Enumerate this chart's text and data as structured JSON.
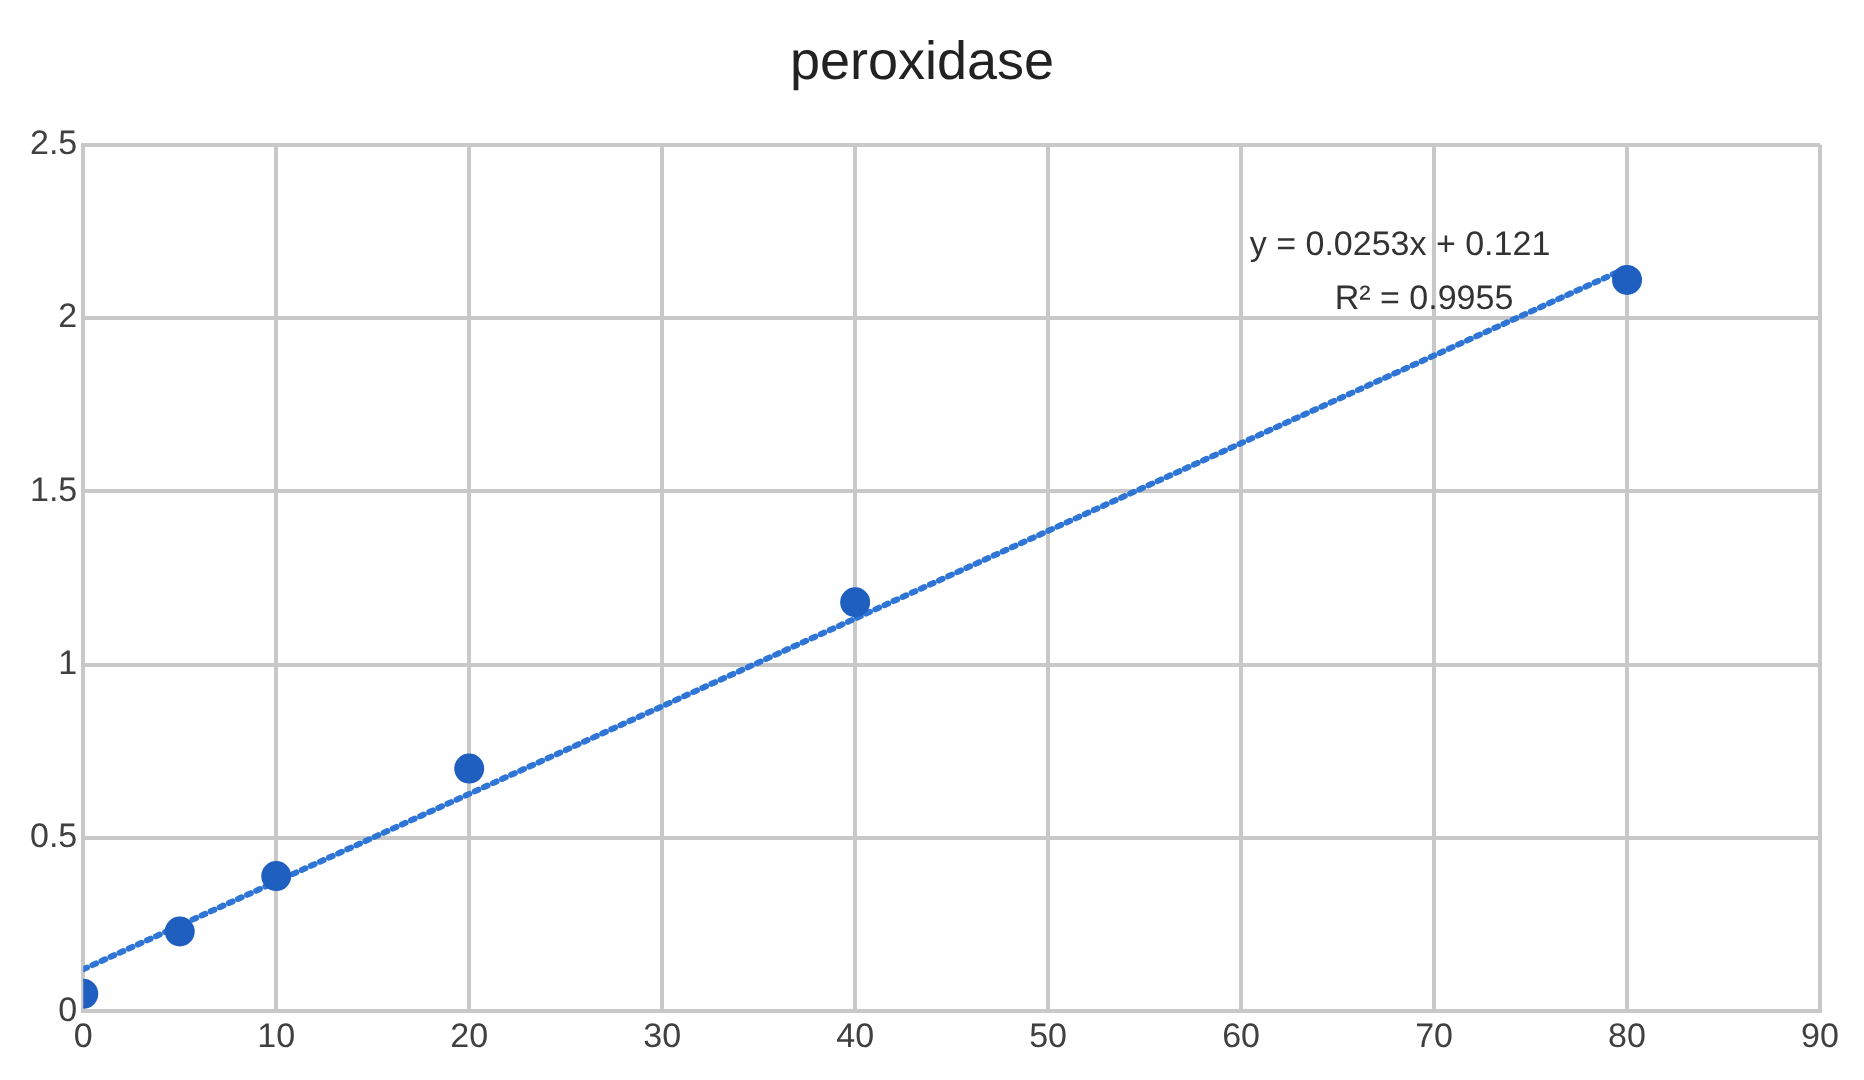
{
  "chart_data": {
    "type": "scatter",
    "title": "peroxidase",
    "x": [
      0,
      5,
      10,
      20,
      40,
      80
    ],
    "series": [
      {
        "type": "scatter",
        "color": "#1f5fbf",
        "marker": "circle",
        "values": [
          0.05,
          0.23,
          0.39,
          0.7,
          1.18,
          2.11
        ]
      },
      {
        "type": "line",
        "color": "#2e75d6",
        "marker": "none",
        "line_style": "dotted",
        "x": [
          0,
          80
        ],
        "values": [
          0.121,
          2.145
        ]
      }
    ],
    "xlim": [
      0,
      90
    ],
    "xticks": [
      0,
      10,
      20,
      30,
      40,
      50,
      60,
      70,
      80,
      90
    ],
    "ylim": [
      0,
      2.5
    ],
    "yticks": [
      0,
      0.5,
      1,
      1.5,
      2,
      2.5
    ],
    "grid": true,
    "legend": false,
    "annotations": [
      "y = 0.0253x + 0.121",
      "R² = 0.9955"
    ]
  }
}
